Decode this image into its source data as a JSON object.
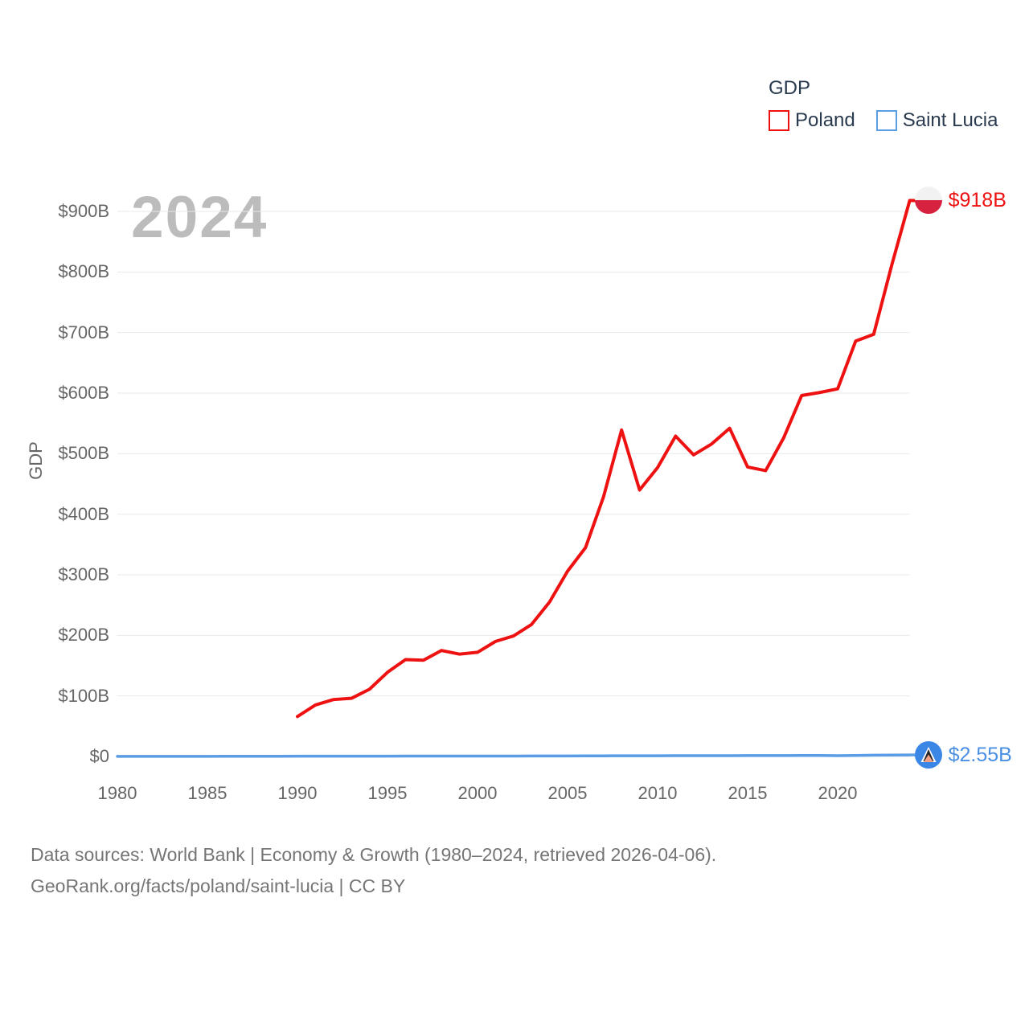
{
  "legend": {
    "title": "GDP",
    "items": [
      {
        "label": "Poland"
      },
      {
        "label": "Saint Lucia"
      }
    ]
  },
  "watermark": "2024",
  "colors": {
    "poland_line": "#ee1111",
    "saint_lucia_line": "#5b9ce4",
    "poland_end_label_text": "#ee1111",
    "saint_lucia_end_label_text": "#4a90e2",
    "tick_text": "#666666",
    "legend_text": "#2a3a4f",
    "watermark_text": "#bcbcbc",
    "gridline": "#e9e9e9",
    "footer_text": "#757575",
    "poland_flag_white": "#f2f2f2",
    "poland_flag_red": "#d6213f",
    "saint_lucia_flag_blue": "#3b87e6"
  },
  "chart_data": {
    "type": "line",
    "title": "GDP",
    "xlabel": "",
    "ylabel": "GDP",
    "xlim": [
      1980,
      2024
    ],
    "ylim": [
      0,
      900
    ],
    "grid": true,
    "legend_position": "top-right",
    "y_ticks": [
      0,
      100,
      200,
      300,
      400,
      500,
      600,
      700,
      800,
      900
    ],
    "y_tick_labels": [
      "$0",
      "$100B",
      "$200B",
      "$300B",
      "$400B",
      "$500B",
      "$600B",
      "$700B",
      "$800B",
      "$900B"
    ],
    "x_ticks": [
      1980,
      1985,
      1990,
      1995,
      2000,
      2005,
      2010,
      2015,
      2020
    ],
    "x_tick_labels": [
      "1980",
      "1985",
      "1990",
      "1995",
      "2000",
      "2005",
      "2010",
      "2015",
      "2020"
    ],
    "units": "billions USD",
    "series": [
      {
        "name": "Poland",
        "color": "#ee1111",
        "end_label": "$918B",
        "x": [
          1990,
          1991,
          1992,
          1993,
          1994,
          1995,
          1996,
          1997,
          1998,
          1999,
          2000,
          2001,
          2002,
          2003,
          2004,
          2005,
          2006,
          2007,
          2008,
          2009,
          2010,
          2011,
          2012,
          2013,
          2014,
          2015,
          2016,
          2017,
          2018,
          2019,
          2020,
          2021,
          2022,
          2023,
          2024
        ],
        "values": [
          66,
          85,
          94,
          96,
          111,
          139,
          160,
          159,
          175,
          169,
          172,
          190,
          199,
          218,
          255,
          306,
          345,
          429,
          539,
          440,
          477,
          529,
          498,
          516,
          542,
          478,
          472,
          526,
          596,
          601,
          607,
          686,
          697,
          811,
          918
        ]
      },
      {
        "name": "Saint Lucia",
        "color": "#5b9ce4",
        "end_label": "$2.55B",
        "x": [
          1980,
          1981,
          1982,
          1983,
          1984,
          1985,
          1986,
          1987,
          1988,
          1989,
          1990,
          1991,
          1992,
          1993,
          1994,
          1995,
          1996,
          1997,
          1998,
          1999,
          2000,
          2001,
          2002,
          2003,
          2004,
          2005,
          2006,
          2007,
          2008,
          2009,
          2010,
          2011,
          2012,
          2013,
          2014,
          2015,
          2016,
          2017,
          2018,
          2019,
          2020,
          2021,
          2022,
          2023,
          2024
        ],
        "values": [
          0.16,
          0.17,
          0.19,
          0.2,
          0.22,
          0.24,
          0.27,
          0.31,
          0.35,
          0.39,
          0.45,
          0.48,
          0.51,
          0.53,
          0.55,
          0.58,
          0.6,
          0.62,
          0.66,
          0.69,
          0.71,
          0.7,
          0.72,
          0.78,
          0.84,
          0.9,
          0.98,
          1.06,
          1.13,
          1.13,
          1.24,
          1.29,
          1.31,
          1.34,
          1.38,
          1.43,
          1.46,
          1.53,
          1.64,
          1.73,
          1.38,
          1.71,
          2.1,
          2.4,
          2.55
        ]
      }
    ]
  },
  "footer": {
    "line1": "Data sources: World Bank | Economy & Growth (1980–2024, retrieved 2026-04-06).",
    "line2": "GeoRank.org/facts/poland/saint-lucia | CC BY"
  }
}
